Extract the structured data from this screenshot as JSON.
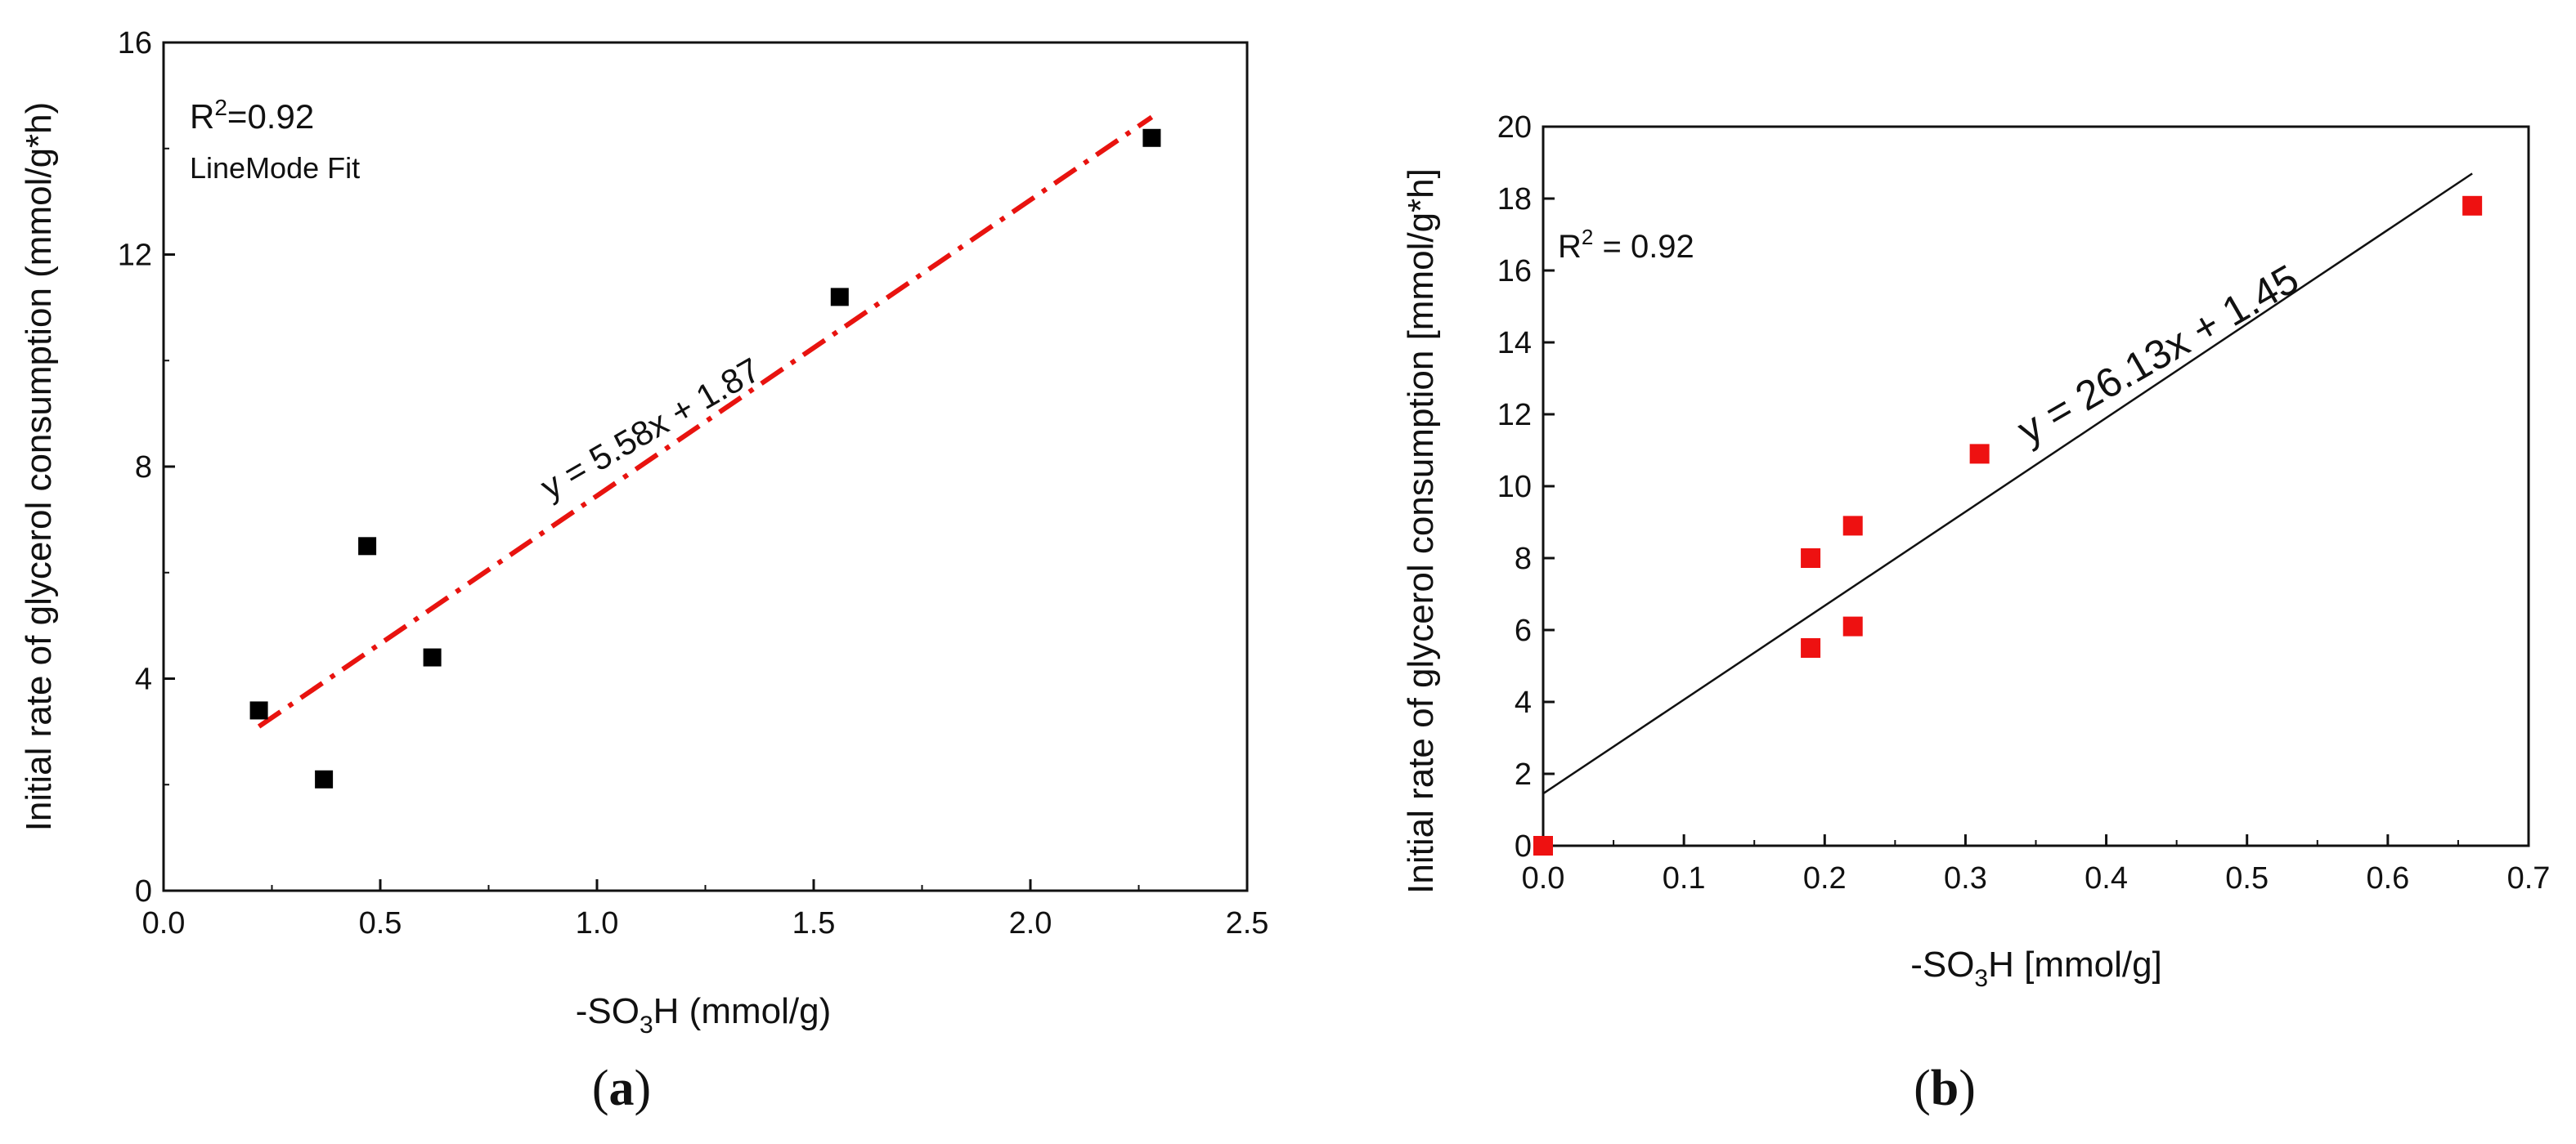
{
  "chart_data": [
    {
      "type": "scatter",
      "panel": {
        "open": "(",
        "letter": "a",
        "close": ")"
      },
      "xlabel": {
        "prefix": "-SO",
        "sub": "3",
        "suffix": "H (mmol/g)"
      },
      "ylabel": "Initial rate of glycerol consumption (mmol/g*h)",
      "xlim": [
        0,
        2.5
      ],
      "ylim": [
        0,
        16
      ],
      "xticks": [
        0.0,
        0.5,
        1.0,
        1.5,
        2.0,
        2.5
      ],
      "xtick_labels": [
        "0.0",
        "0.5",
        "1.0",
        "1.5",
        "2.0",
        "2.5"
      ],
      "yticks": [
        0,
        4,
        8,
        12,
        16
      ],
      "ytick_labels": [
        "0",
        "4",
        "8",
        "12",
        "16"
      ],
      "series": [
        {
          "name": "data",
          "marker": "square",
          "color": "#000000",
          "points": [
            [
              0.22,
              3.4
            ],
            [
              0.37,
              2.1
            ],
            [
              0.47,
              6.5
            ],
            [
              0.62,
              4.4
            ],
            [
              1.56,
              11.2
            ],
            [
              2.28,
              14.2
            ]
          ]
        }
      ],
      "fit": {
        "slope": 5.58,
        "intercept": 1.87,
        "x_range": [
          0.22,
          2.28
        ],
        "style": "dash-dot",
        "color": "#e8130f"
      },
      "annotations": {
        "r2": {
          "base": "R",
          "sup": "2",
          "rest": "=0.92"
        },
        "method": "LineMode Fit",
        "equation": "y = 5.58x + 1.87"
      }
    },
    {
      "type": "scatter",
      "panel": {
        "open": "(",
        "letter": "b",
        "close": ")"
      },
      "xlabel": {
        "prefix": "-SO",
        "sub": "3",
        "suffix": "H [mmol/g]"
      },
      "ylabel": "Initial rate of glycerol consumption [mmol/g*h]",
      "xlim": [
        0,
        0.7
      ],
      "ylim": [
        0,
        20
      ],
      "xticks": [
        0.0,
        0.1,
        0.2,
        0.3,
        0.4,
        0.5,
        0.6,
        0.7
      ],
      "xtick_labels": [
        "0.0",
        "0.1",
        "0.2",
        "0.3",
        "0.4",
        "0.5",
        "0.6",
        "0.7"
      ],
      "yticks": [
        0,
        2,
        4,
        6,
        8,
        10,
        12,
        14,
        16,
        18,
        20
      ],
      "ytick_labels": [
        "0",
        "2",
        "4",
        "6",
        "8",
        "10",
        "12",
        "14",
        "16",
        "18",
        "20"
      ],
      "series": [
        {
          "name": "data",
          "marker": "square",
          "color": "#ee1111",
          "points": [
            [
              0.0,
              0.0
            ],
            [
              0.19,
              8.0
            ],
            [
              0.19,
              5.5
            ],
            [
              0.22,
              8.9
            ],
            [
              0.22,
              6.1
            ],
            [
              0.31,
              10.9
            ],
            [
              0.66,
              17.8
            ]
          ]
        }
      ],
      "fit": {
        "slope": 26.13,
        "intercept": 1.45,
        "x_range": [
          0.0,
          0.66
        ],
        "style": "solid",
        "color": "#000000"
      },
      "annotations": {
        "r2": {
          "base": "R",
          "sup": "2",
          "rest": " = 0.92"
        },
        "equation": "y = 26.13x + 1.45"
      }
    }
  ]
}
